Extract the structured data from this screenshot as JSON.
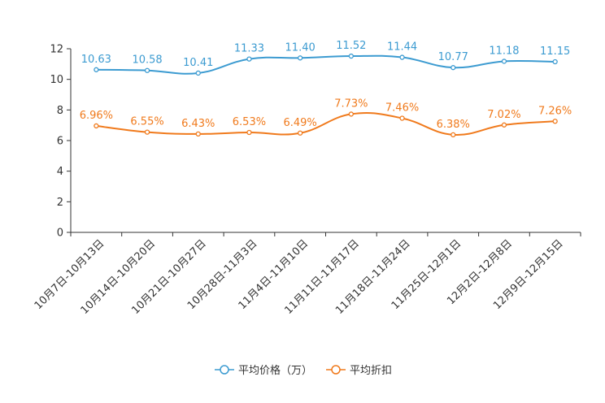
{
  "chart_data": {
    "type": "line",
    "categories": [
      "10月7日-10月13日",
      "10月14日-10月20日",
      "10月21日-10月27日",
      "10月28日-11月3日",
      "11月4日-11月10日",
      "11月11日-11月17日",
      "11月18日-11月24日",
      "11月25日-12月1日",
      "12月2日-12月8日",
      "12月9日-12月15日"
    ],
    "series": [
      {
        "name": "平均价格（万）",
        "color": "#3c9bd1",
        "values": [
          10.63,
          10.58,
          10.41,
          11.33,
          11.4,
          11.52,
          11.44,
          10.77,
          11.18,
          11.15
        ],
        "labels": [
          "10.63",
          "10.58",
          "10.41",
          "11.33",
          "11.40",
          "11.52",
          "11.44",
          "10.77",
          "11.18",
          "11.15"
        ]
      },
      {
        "name": "平均折扣",
        "color": "#f07a1c",
        "values": [
          6.96,
          6.55,
          6.43,
          6.53,
          6.49,
          7.73,
          7.46,
          6.38,
          7.02,
          7.26
        ],
        "labels": [
          "6.96%",
          "6.55%",
          "6.43%",
          "6.53%",
          "6.49%",
          "7.73%",
          "7.46%",
          "6.38%",
          "7.02%",
          "7.26%"
        ]
      }
    ],
    "yticks": [
      "0",
      "2",
      "4",
      "6",
      "8",
      "10",
      "12"
    ],
    "ylim": [
      0,
      12
    ],
    "title": "",
    "xlabel": "",
    "ylabel": "",
    "legend_position": "bottom-center"
  }
}
